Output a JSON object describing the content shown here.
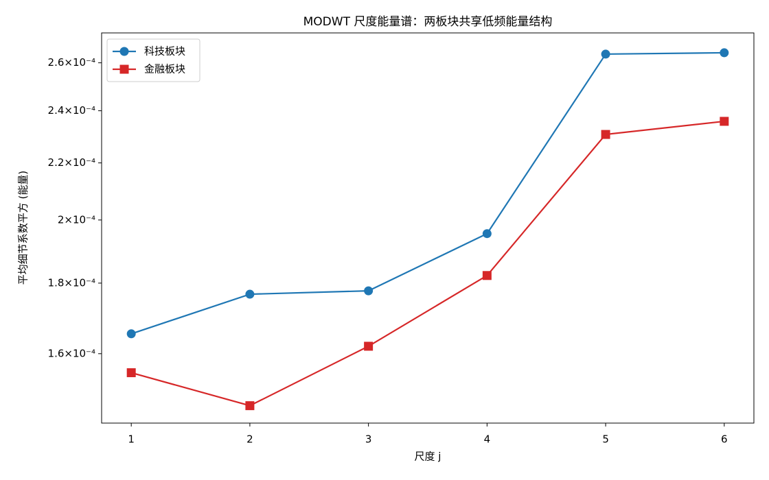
{
  "chart_data": {
    "type": "line",
    "title": "MODWT 尺度能量谱：两板块共享低频能量结构",
    "x_label": "尺度 j",
    "y_label": "平均细节系数平方 (能量)",
    "x": [
      1,
      2,
      3,
      4,
      5,
      6
    ],
    "series": [
      {
        "name": "科技板块",
        "color": "#1f77b4",
        "marker": "circle",
        "values": [
          0.0001654,
          0.0001767,
          0.0001777,
          0.0001955,
          0.0002638,
          0.0002644
        ]
      },
      {
        "name": "金融板块",
        "color": "#d62728",
        "marker": "square",
        "values": [
          0.000155,
          0.0001467,
          0.000162,
          0.0001823,
          0.0002307,
          0.0002358
        ]
      }
    ],
    "xlim": [
      0.75,
      6.25
    ],
    "xticks": [
      1,
      2,
      3,
      4,
      5,
      6
    ],
    "ylim": [
      0.0001425,
      0.0002733
    ],
    "y_scale": "log",
    "yticks": [
      {
        "value": 0.00016,
        "label": "1.6×10⁻⁴"
      },
      {
        "value": 0.00018,
        "label": "1.8×10⁻⁴"
      },
      {
        "value": 0.0002,
        "label": "2×10⁻⁴"
      },
      {
        "value": 0.00022,
        "label": "2.2×10⁻⁴"
      },
      {
        "value": 0.00024,
        "label": "2.4×10⁻⁴"
      },
      {
        "value": 0.00026,
        "label": "2.6×10⁻⁴"
      }
    ],
    "grid": false,
    "legend": "upper-left"
  }
}
